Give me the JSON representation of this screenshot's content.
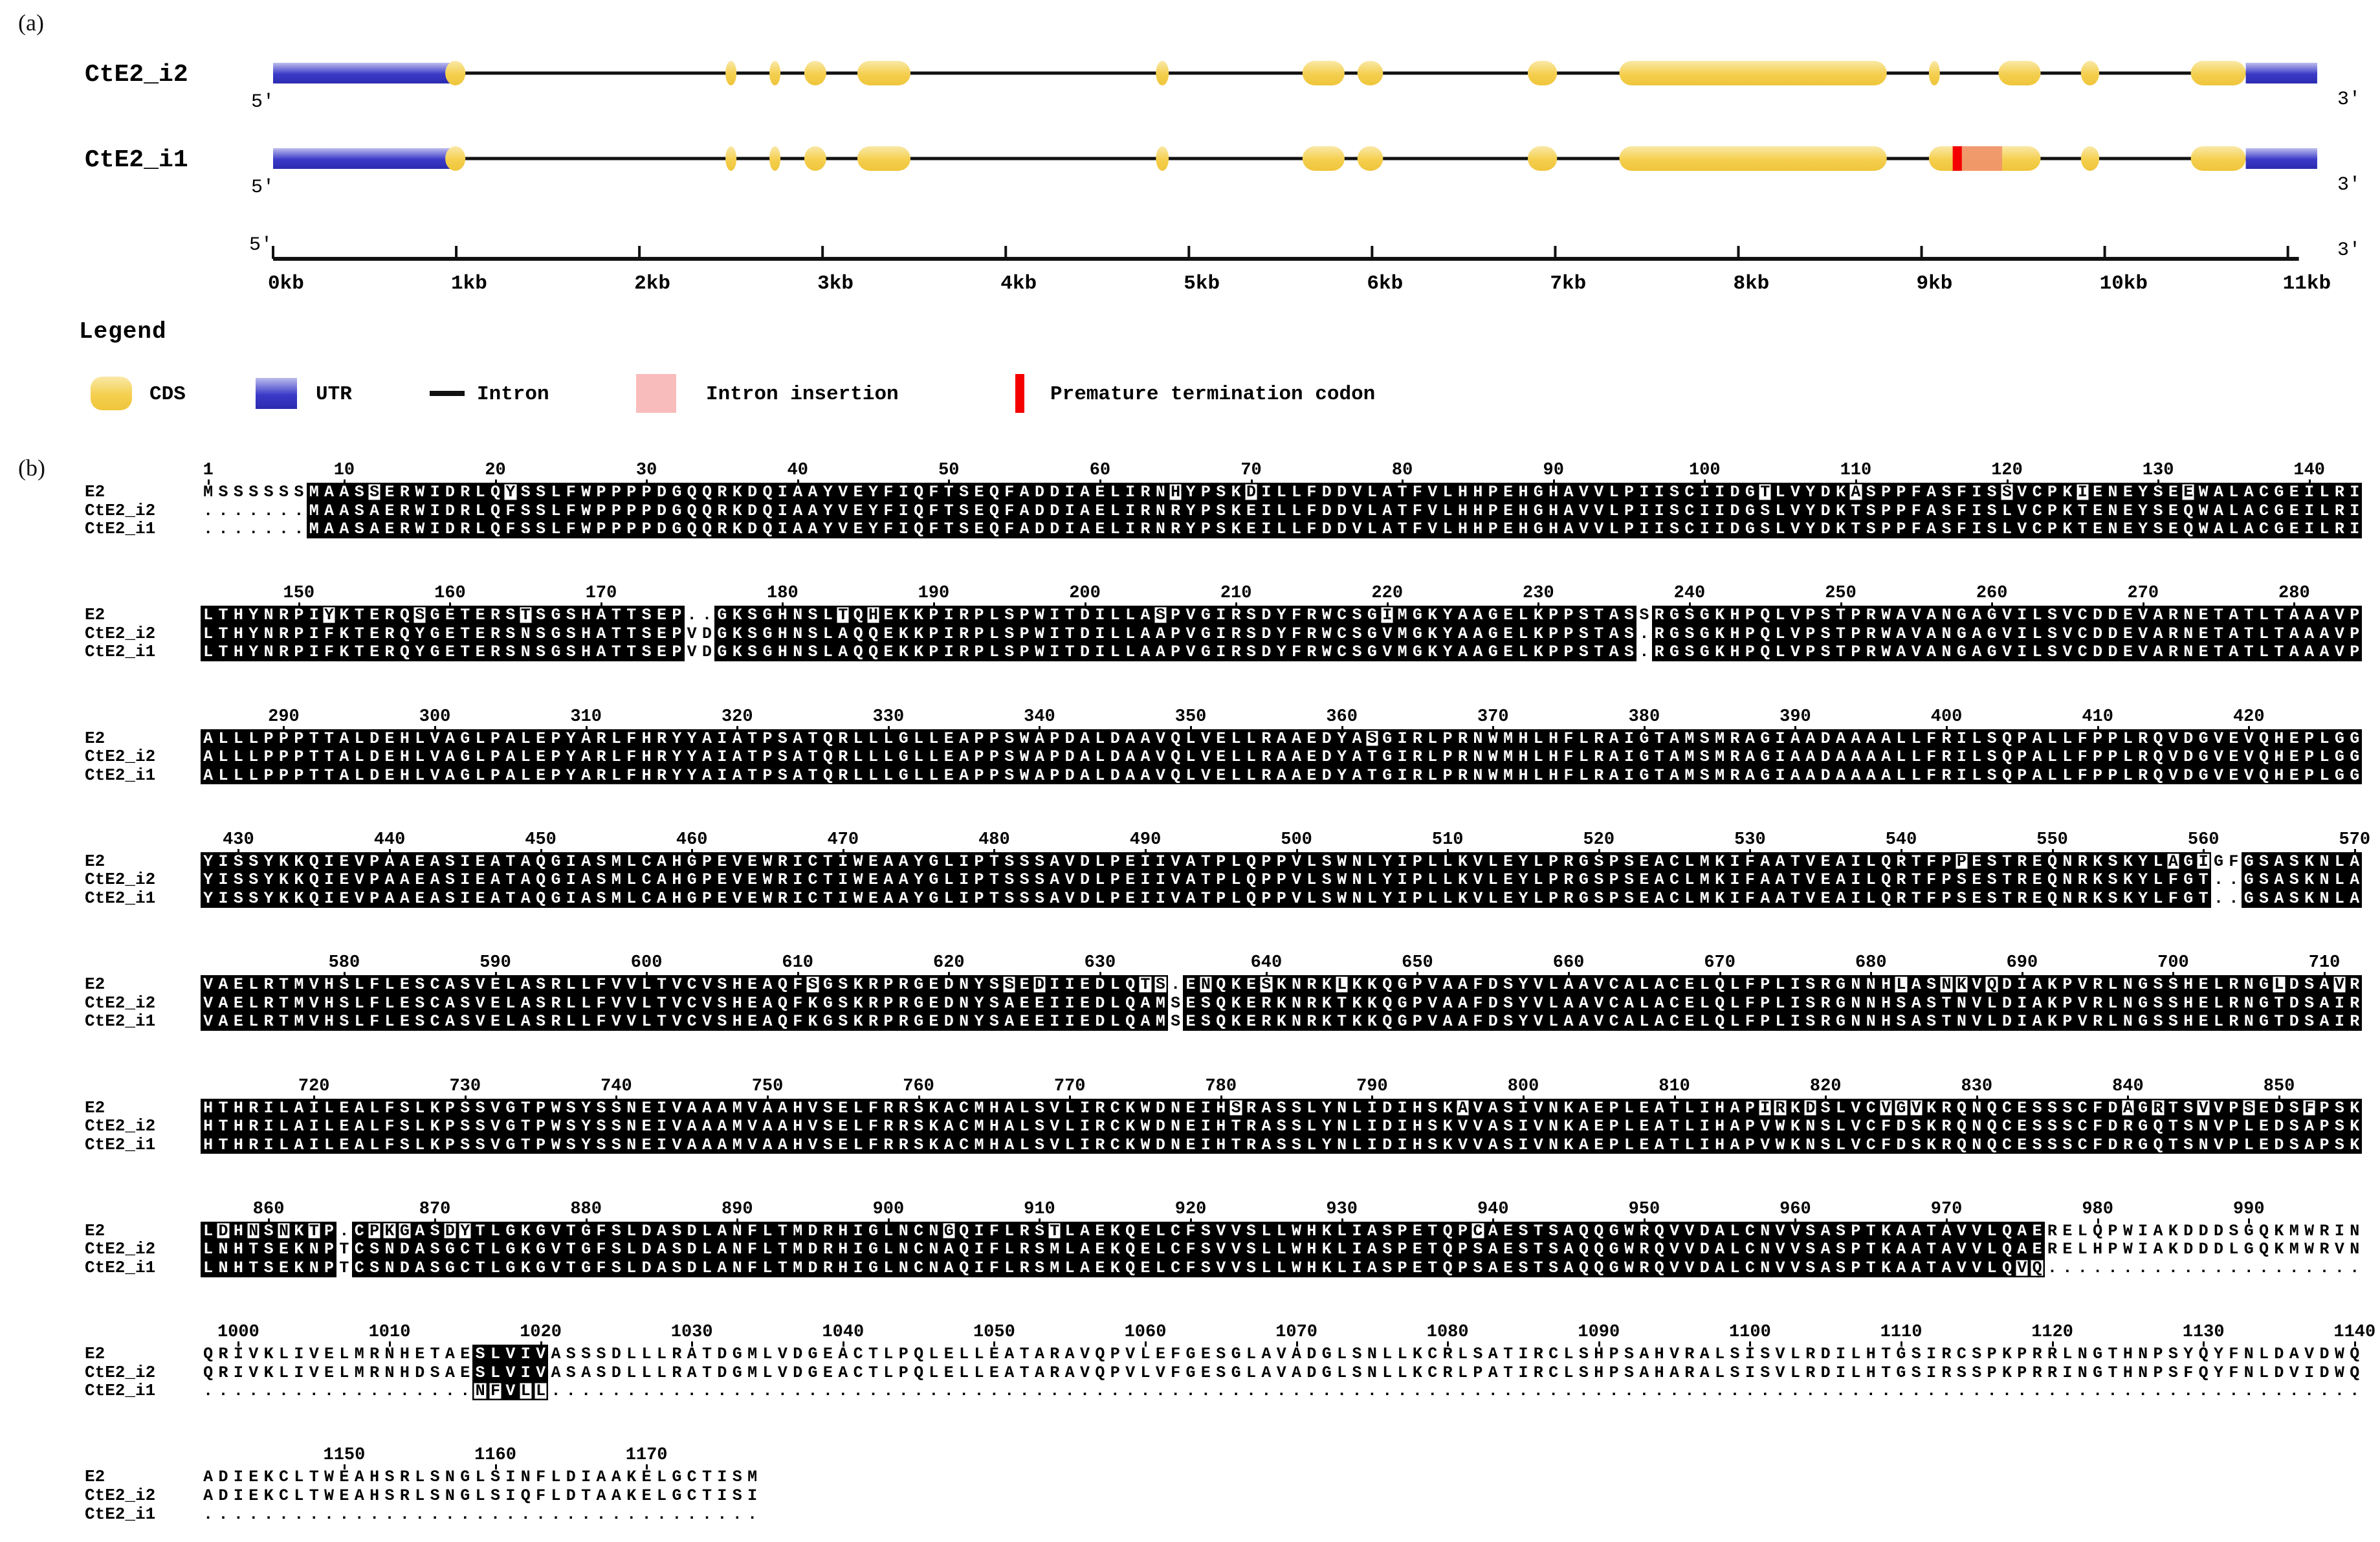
{
  "panels": {
    "a": "(a)",
    "b": "(b)"
  },
  "gene_diagram": {
    "axis": {
      "five_prime": "5'",
      "three_prime": "3'",
      "tick_labels": [
        "0kb",
        "1kb",
        "2kb",
        "3kb",
        "4kb",
        "5kb",
        "6kb",
        "7kb",
        "8kb",
        "9kb",
        "10kb",
        "11kb"
      ]
    },
    "tracks": [
      {
        "name": "CtE2_i2",
        "five_prime": "5'",
        "three_prime": "3'",
        "utr": [
          [
            0,
            0.99
          ],
          [
            10.77,
            11.16
          ]
        ],
        "exons": [
          [
            0.94,
            1.05
          ],
          [
            2.47,
            2.53
          ],
          [
            2.71,
            2.77
          ],
          [
            2.9,
            3.02
          ],
          [
            3.19,
            3.48
          ],
          [
            4.82,
            4.89
          ],
          [
            5.62,
            5.85
          ],
          [
            5.92,
            6.06
          ],
          [
            6.85,
            7.01
          ],
          [
            7.35,
            8.81
          ],
          [
            9.04,
            9.1
          ],
          [
            9.42,
            9.65
          ],
          [
            9.87,
            9.97
          ],
          [
            10.47,
            10.77
          ]
        ],
        "insertion": null,
        "ptc": null
      },
      {
        "name": "CtE2_i1",
        "five_prime": "5'",
        "three_prime": "3'",
        "utr": [
          [
            0,
            0.99
          ],
          [
            10.77,
            11.16
          ]
        ],
        "exons": [
          [
            0.94,
            1.05
          ],
          [
            2.47,
            2.53
          ],
          [
            2.71,
            2.77
          ],
          [
            2.9,
            3.02
          ],
          [
            3.19,
            3.48
          ],
          [
            4.82,
            4.89
          ],
          [
            5.62,
            5.85
          ],
          [
            5.92,
            6.06
          ],
          [
            6.85,
            7.01
          ],
          [
            7.35,
            8.81
          ],
          [
            9.04,
            9.65
          ],
          [
            9.87,
            9.97
          ],
          [
            10.47,
            10.77
          ]
        ],
        "insertion": [
          9.22,
          9.44
        ],
        "ptc": [
          9.17,
          9.22
        ]
      }
    ]
  },
  "legend": {
    "title": "Legend",
    "items": [
      {
        "name": "cds",
        "label": "CDS"
      },
      {
        "name": "utr",
        "label": "UTR"
      },
      {
        "name": "intron",
        "label": "Intron"
      },
      {
        "name": "intron-insertion",
        "label": "Intron insertion"
      },
      {
        "name": "premature-termination-codon",
        "label": "Premature termination codon"
      }
    ]
  },
  "alignment": {
    "row_names": [
      "E2",
      "CtE2_i2",
      "CtE2_i1"
    ],
    "blocks": [
      {
        "rows": [
          "MSSSSSSMAASSERWIDRLQYSSLFWPPPPDGQQRKDQIAAYVEYFIQFTSEQFADDIAELIRNHYPSKDILLFDDVLATFVLHHPEHGHAVVLPIISCIIDGTLVYDKASPPFASFISSVCPKIENEYSEEWALACGEILRI",
          ".......MAASAERWIDRLQFSSLFWPPPPDGQQRKDQIAAYVEYFIQFTSEQFADDIAELIRNRYPSKEILLFDDVLATFVLHHPEHGHAVVLPIISCIIDGSLVYDKTSPPFASFISLVCPKTENEYSEQWALACGEILRI",
          ".......MAASAERWIDRLQFSSLFWPPPPDGQQRKDQIAAYVEYFIQFTSEQFADDIAELIRNRYPSKEILLFDDVLATFVLHHPEHGHAVVLPIISCIIDGSLVYDKTSPPFASFISLVCPKTENEYSEQWALACGEILRI"
        ]
      },
      {
        "rows": [
          "LTHYNRPIYKTERQSGETERSTSGSHATTSEP..GKSGHNSLTQHEKKPIRPLSPWITDILLASPVGIRSDYFRWCSGIMGKYAAGELKPPSTASSRGSGKHPQLVPSTPRWAVANGAGVILSVCDDEVARNETATLTAAAVP",
          "LTHYNRPIFKTERQYGETERSNSGSHATTSEPVDGKSGHNSLAQQEKKPIRPLSPWITDILLAAPVGIRSDYFRWCSGVMGKYAAGELKPPSTAS.RGSGKHPQLVPSTPRWAVANGAGVILSVCDDEVARNETATLTAAAVP",
          "LTHYNRPIFKTERQYGETERSNSGSHATTSEPVDGKSGHNSLAQQEKKPIRPLSPWITDILLAAPVGIRSDYFRWCSGVMGKYAAGELKPPSTAS.RGSGKHPQLVPSTPRWAVANGAGVILSVCDDEVARNETATLTAAAVP"
        ]
      },
      {
        "rows": [
          "ALLLPPPTTALDEHLVAGLPALEPYARLFHRYYAIATPSATQRLLLGLLEAPPSWAPDALDAAVQLVELLRAAEDYASGIRLPRNWMHLHFLRAIGTAMSMRAGIAADAAAALLFRILSQPALLFPPLRQVDGVEVQHEPLGG",
          "ALLLPPPTTALDEHLVAGLPALEPYARLFHRYYAIATPSATQRLLLGLLEAPPSWAPDALDAAVQLVELLRAAEDYATGIRLPRNWMHLHFLRAIGTAMSMRAGIAADAAAALLFRILSQPALLFPPLRQVDGVEVQHEPLGG",
          "ALLLPPPTTALDEHLVAGLPALEPYARLFHRYYAIATPSATQRLLLGLLEAPPSWAPDALDAAVQLVELLRAAEDYATGIRLPRNWMHLHFLRAIGTAMSMRAGIAADAAAALLFRILSQPALLFPPLRQVDGVEVQHEPLGG"
        ]
      },
      {
        "rows": [
          "YISSYKKQIEVPAAEASIEATAQGIASMLCAHGPEVEWRICTIWEAAYGLIPTSSSAVDLPEIIVATPLQPPVLSWNLYIPLLKVLEYLPRGSPSEACLMKIFAATVEAILQRTFPPESTREQNRKSKYLAGIGFGSASKNLA",
          "YISSYKKQIEVPAAEASIEATAQGIASMLCAHGPEVEWRICTIWEAAYGLIPTSSSAVDLPEIIVATPLQPPVLSWNLYIPLLKVLEYLPRGSPSEACLMKIFAATVEAILQRTFPSESTREQNRKSKYLFGT..GSASKNLA",
          "YISSYKKQIEVPAAEASIEATAQGIASMLCAHGPEVEWRICTIWEAAYGLIPTSSSAVDLPEIIVATPLQPPVLSWNLYIPLLKVLEYLPRGSPSEACLMKIFAATVEAILQRTFPSESTREQNRKSKYLFGT..GSASKNLA"
        ]
      },
      {
        "rows": [
          "VAELRTMVHSLFLESCASVELASRLLFVVLTVCVSHEAQFSGSKRPRGEDNYSSEDIIEDLQTS.ENQKESKNRKLKKQGPVAAFDSYVLAAVCALACELQLFPLISRGNNHLASNKVQDIAKPVRLNGSSHELRNGLDSAVR",
          "VAELRTMVHSLFLESCASVELASRLLFVVLTVCVSHEAQFKGSKRPRGEDNYSAEEIIEDLQAMSESQKERKNRKTKKQGPVAAFDSYVLAAVCALACELQLFPLISRGNNHSASTNVLDIAKPVRLNGSSHELRNGTDSAIR",
          "VAELRTMVHSLFLESCASVELASRLLFVVLTVCVSHEAQFKGSKRPRGEDNYSAEEIIEDLQAMSESQKERKNRKTKKQGPVAAFDSYVLAAVCALACELQLFPLISRGNNHSASTNVLDIAKPVRLNGSSHELRNGTDSAIR"
        ]
      },
      {
        "rows": [
          "HTHRILAILEALFSLKPSSVGTPWSYSSNEIVAAAMVAAHVSELFRRSKACMHALSVLIRCKWDNEIHSRASSLYNLIDIHSKAVASIVNKAEPLEATLIHAPIRKDSLVCVGVKRQNQCESSSCFDAGRTSVVPSEDSFPSK",
          "HTHRILAILEALFSLKPSSVGTPWSYSSNEIVAAAMVAAHVSELFRRSKACMHALSVLIRCKWDNEIHTRASSLYNLIDIHSKVVASIVNKAEPLEATLIHAPVWKNSLVCFDSKRQNQCESSSCFDRGQTSNVPLEDSAPSK",
          "HTHRILAILEALFSLKPSSVGTPWSYSSNEIVAAAMVAAHVSELFRRSKACMHALSVLIRCKWDNEIHTRASSLYNLIDIHSKVVASIVNKAEPLEATLIHAPVWKNSLVCFDSKRQNQCESSSCFDRGQTSNVPLEDSAPSK"
        ]
      },
      {
        "rows": [
          "LDHNSNKTP.CPKGASDYTLGKGVTGFSLDASDLANFLTMDRHIGLNCNGQIFLRSTLAEKQELCFSVVSLLWHKLIASPETQPCAESTSAQQGWRQVVDALCNVVSASPTKAATAVVLQAERELQPWIAKDDDSGQKMWRIN",
          "LNHTSEKNPTCSNDASGCTLGKGVTGFSLDASDLANFLTMDRHIGLNCNAQIFLRSMLAEKQELCFSVVSLLWHKLIASPETQPSAESTSAQQGWRQVVDALCNVVSASPTKAATAVVLQAERELHPWIAKDDDLGQKMWRVN",
          "LNHTSEKNPTCSNDASGCTLGKGVTGFSLDASDLANFLTMDRHIGLNCNAQIFLRSMLAEKQELCFSVVSLLWHKLIASPETQPSAESTSAQQGWRQVVDALCNVVSASPTKAATAVVLQVQ....................."
        ]
      },
      {
        "rows": [
          "QRIVKLIVELMRNHETAESLVIVASSSDLLLRATDGMLVDGEACTLPQLELLEATARAVQPVLEFGESGLAVADGLSNLLKCRLSATIRCLSHPSAHVRALSISVLRDILHTGSIRCSPKPRRLNGTHNPSYQYFNLDAVDWQ",
          "QRIVKLIVELMRNHDSAESLVIVASASDLLLRATDGMLVDGEACTLPQLELLEATARAVQPVLVFGESGLAVADGLSNLLKCRLPATIRCLSHPSAHARALSISVLRDILHTGSIRSSPKPRRINGTHNPSFQYFNLDVIDWQ",
          "..................NFVLL........................................................................................................................"
        ]
      },
      {
        "rows": [
          "ADIEKCLTWEAHSRLSNGLSINFLDIAAKELGCTISM",
          "ADIEKCLTWEAHSRLSNGLSIQFLDTAAKELGCTISI",
          "....................................."
        ]
      }
    ]
  },
  "colors": {
    "cds_light": "#FAE9A8",
    "cds_dark": "#EFC53B",
    "utr_light": "#BDBDEE",
    "utr_dark": "#2B2BB0",
    "intron": "#111111",
    "insertion": "#F0926C",
    "insertion_legend": "#F9BCBC",
    "ptc": "#F40000",
    "conserved_bg": "#000000",
    "conserved_fg": "#FFFFFF"
  }
}
